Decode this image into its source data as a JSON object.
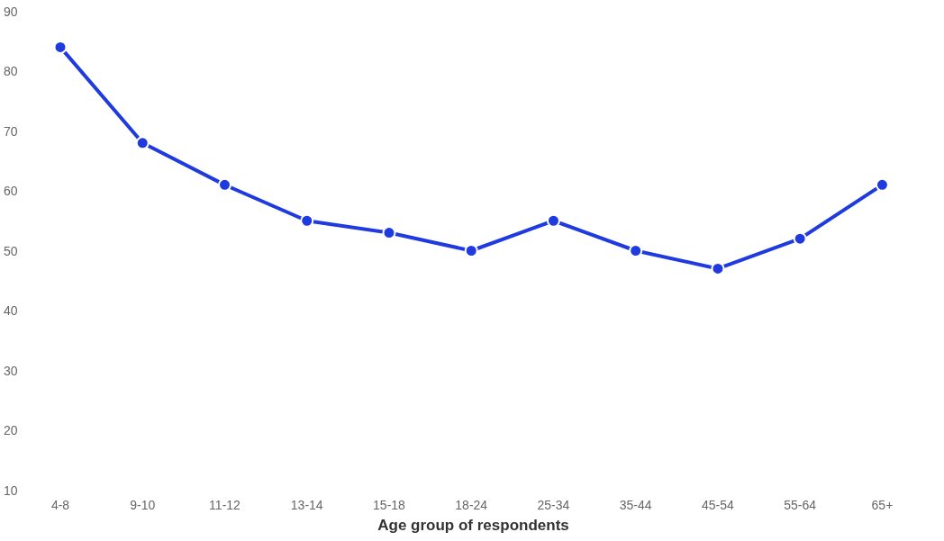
{
  "chart_data": {
    "type": "line",
    "xlabel": "Age group of respondents",
    "categories": [
      "4-8",
      "9-10",
      "11-12",
      "13-14",
      "15-18",
      "18-24",
      "25-34",
      "35-44",
      "45-54",
      "55-64",
      "65+"
    ],
    "series": [
      {
        "color": "#1f3be0",
        "values": [
          84,
          68,
          61,
          55,
          53,
          50,
          55,
          50,
          47,
          52,
          61
        ]
      }
    ],
    "ylim": [
      10,
      90
    ],
    "yticks": [
      10,
      20,
      30,
      40,
      50,
      60,
      70,
      80,
      90
    ],
    "grid": false,
    "marker": "circle",
    "line_style": "solid"
  }
}
